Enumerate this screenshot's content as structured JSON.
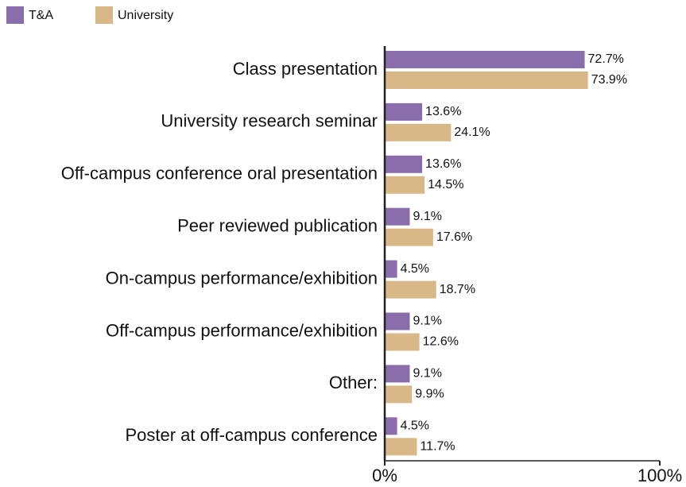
{
  "chart_data": {
    "type": "hbar",
    "categories": [
      "Class presentation",
      "University research seminar",
      "Off-campus conference oral presentation",
      "Peer reviewed publication",
      "On-campus performance/exhibition",
      "Off-campus performance/exhibition",
      "Other:",
      "Poster at off-campus conference"
    ],
    "series": [
      {
        "name": "T&A",
        "color": "#8a6dab",
        "values": [
          72.7,
          13.6,
          13.6,
          9.1,
          4.5,
          9.1,
          9.1,
          4.5
        ],
        "value_labels": [
          "72.7%",
          "13.6%",
          "13.6%",
          "9.1%",
          "4.5%",
          "9.1%",
          "9.1%",
          "4.5%"
        ]
      },
      {
        "name": "University",
        "color": "#d9b888",
        "values": [
          73.9,
          24.1,
          14.5,
          17.6,
          18.7,
          12.6,
          9.9,
          11.7
        ],
        "value_labels": [
          "73.9%",
          "24.1%",
          "14.5%",
          "17.6%",
          "18.7%",
          "12.6%",
          "9.9%",
          "11.7%"
        ]
      }
    ],
    "xlim": [
      0,
      100
    ],
    "xticks": [
      {
        "value": 0,
        "label": "0%"
      },
      {
        "value": 100,
        "label": "100%"
      }
    ],
    "legend": "top-left"
  }
}
